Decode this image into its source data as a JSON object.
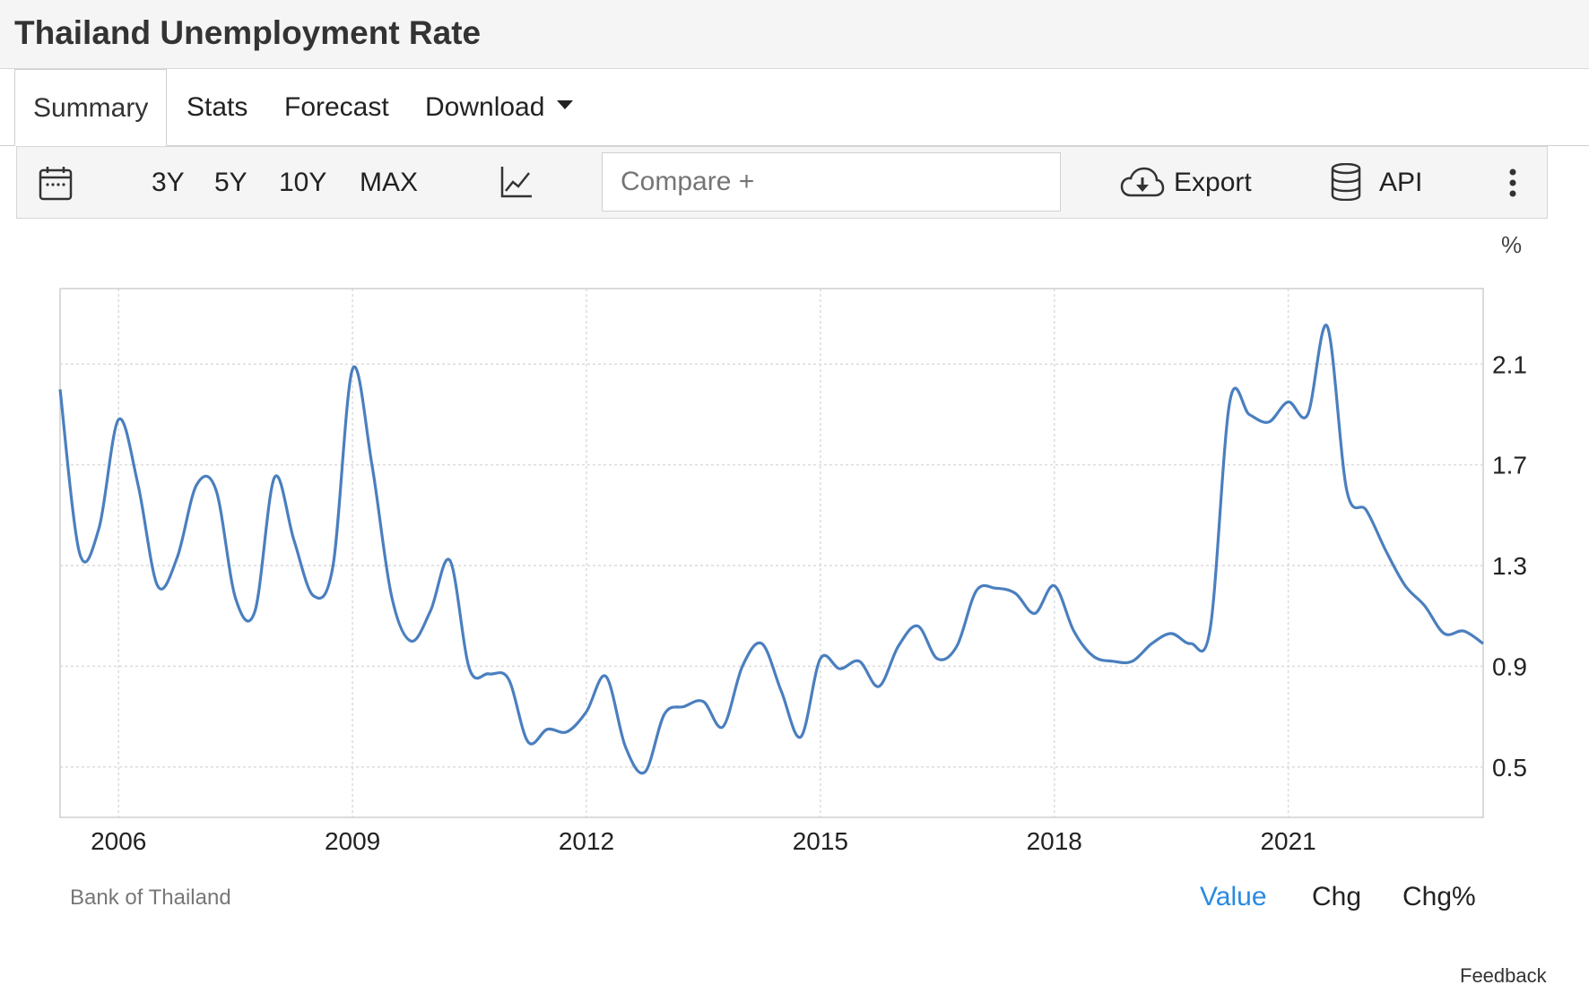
{
  "header": {
    "title": "Thailand Unemployment Rate"
  },
  "tabs": [
    {
      "label": "Summary",
      "active": true
    },
    {
      "label": "Stats"
    },
    {
      "label": "Forecast"
    },
    {
      "label": "Download"
    }
  ],
  "toolbar": {
    "ranges": [
      "3Y",
      "5Y",
      "10Y",
      "MAX"
    ],
    "compare_placeholder": "Compare +",
    "export_label": "Export",
    "api_label": "API",
    "icons": [
      "calendar-icon",
      "line-chart-icon",
      "cloud-download-icon",
      "database-icon",
      "more-vertical-icon"
    ]
  },
  "footer": {
    "source": "Bank of Thailand",
    "modes": [
      "Value",
      "Chg",
      "Chg%"
    ],
    "active_mode": "Value",
    "feedback": "Feedback"
  },
  "colors": {
    "line": "#4a7fbf",
    "active_mode": "#2a8ae0",
    "grid": "#dcdcdc"
  },
  "chart_data": {
    "type": "line",
    "unit_label": "%",
    "xlim": [
      2005.25,
      2023.5
    ],
    "ylim": [
      0.3,
      2.4
    ],
    "x_ticks": [
      2006,
      2009,
      2012,
      2015,
      2018,
      2021
    ],
    "y_ticks": [
      0.5,
      0.9,
      1.3,
      1.7,
      2.1
    ],
    "grid": true,
    "series": [
      {
        "x": [
          2005.25,
          2005.5,
          2005.75,
          2006.0,
          2006.25,
          2006.5,
          2006.75,
          2007.0,
          2007.25,
          2007.5,
          2007.75,
          2008.0,
          2008.25,
          2008.5,
          2008.75,
          2009.0,
          2009.25,
          2009.5,
          2009.75,
          2010.0,
          2010.25,
          2010.5,
          2010.75,
          2011.0,
          2011.25,
          2011.5,
          2011.75,
          2012.0,
          2012.25,
          2012.5,
          2012.75,
          2013.0,
          2013.25,
          2013.5,
          2013.75,
          2014.0,
          2014.25,
          2014.5,
          2014.75,
          2015.0,
          2015.25,
          2015.5,
          2015.75,
          2016.0,
          2016.25,
          2016.5,
          2016.75,
          2017.0,
          2017.25,
          2017.5,
          2017.75,
          2018.0,
          2018.25,
          2018.5,
          2018.75,
          2019.0,
          2019.25,
          2019.5,
          2019.75,
          2020.0,
          2020.25,
          2020.5,
          2020.75,
          2021.0,
          2021.25,
          2021.5,
          2021.75,
          2022.0,
          2022.25,
          2022.5,
          2022.75,
          2023.0,
          2023.25,
          2023.5
        ],
        "values": [
          2.0,
          1.35,
          1.45,
          1.88,
          1.62,
          1.22,
          1.33,
          1.62,
          1.6,
          1.17,
          1.12,
          1.65,
          1.4,
          1.18,
          1.3,
          2.08,
          1.7,
          1.18,
          1.0,
          1.12,
          1.32,
          0.89,
          0.87,
          0.85,
          0.6,
          0.65,
          0.64,
          0.72,
          0.86,
          0.58,
          0.48,
          0.71,
          0.74,
          0.76,
          0.66,
          0.9,
          0.99,
          0.8,
          0.62,
          0.93,
          0.89,
          0.92,
          0.82,
          0.98,
          1.06,
          0.93,
          0.98,
          1.2,
          1.21,
          1.19,
          1.11,
          1.22,
          1.04,
          0.94,
          0.92,
          0.92,
          0.99,
          1.03,
          0.99,
          1.05,
          1.95,
          1.9,
          1.87,
          1.95,
          1.9,
          2.25,
          1.6,
          1.52,
          1.36,
          1.22,
          1.14,
          1.03,
          1.04,
          0.99
        ]
      }
    ]
  }
}
